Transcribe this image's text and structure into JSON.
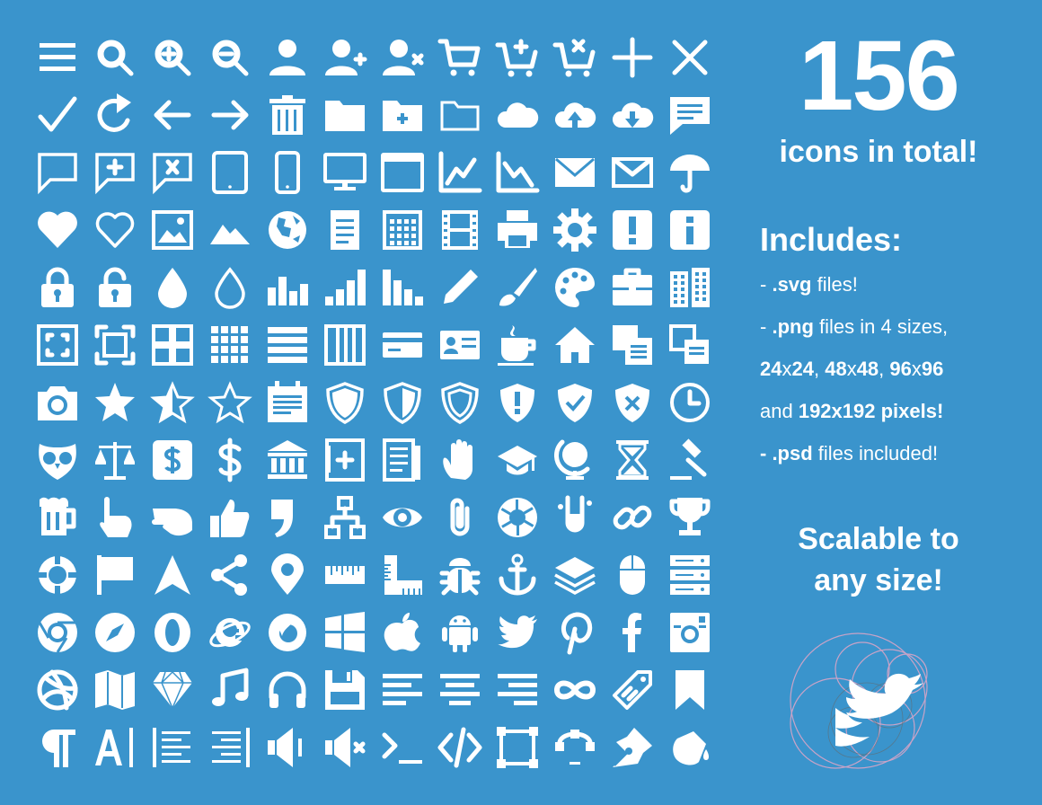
{
  "headline": {
    "count": "156",
    "subtitle": "icons in total!"
  },
  "includes": {
    "title": "Includes:",
    "lines": [
      {
        "prefix": "- ",
        "bold": ".svg",
        "rest": " files!"
      },
      {
        "prefix": "- ",
        "bold": ".png",
        "rest": " files in 4 sizes,"
      },
      {
        "bold1": "24",
        "t1": "x",
        "bold2": "24",
        "t2": ", ",
        "bold3": "48",
        "t3": "x",
        "bold4": "48",
        "t4": ", ",
        "bold5": "96",
        "t5": "x",
        "bold6": "96"
      },
      {
        "t1": "and ",
        "bold1": "192x192 pixels!"
      },
      {
        "bold1": "- .psd",
        "rest": " files included!"
      }
    ]
  },
  "tagline": {
    "line1": "Scalable to",
    "line2": "any size!"
  },
  "colors": {
    "background": "#3a94cc",
    "icon": "#ffffff",
    "bird_guides": "#c9a3c7"
  },
  "icons": [
    [
      "menu-icon",
      "search-icon",
      "zoom-in-icon",
      "zoom-out-icon",
      "user-icon",
      "user-add-icon",
      "user-remove-icon",
      "cart-icon",
      "cart-add-icon",
      "cart-remove-icon",
      "plus-icon",
      "close-icon"
    ],
    [
      "check-icon",
      "redo-icon",
      "arrow-left-icon",
      "arrow-right-icon",
      "trash-icon",
      "folder-icon",
      "folder-add-icon",
      "folder-outline-icon",
      "cloud-icon",
      "cloud-upload-icon",
      "cloud-download-icon",
      "chat-icon"
    ],
    [
      "chat-outline-icon",
      "chat-add-icon",
      "chat-remove-icon",
      "tablet-icon",
      "phone-icon",
      "monitor-icon",
      "browser-window-icon",
      "line-chart-up-icon",
      "line-chart-down-icon",
      "mail-icon",
      "mail-outline-icon",
      "umbrella-icon"
    ],
    [
      "heart-icon",
      "heart-outline-icon",
      "image-icon",
      "mountains-icon",
      "globe-icon",
      "document-icon",
      "calendar-grid-icon",
      "film-icon",
      "printer-icon",
      "gear-icon",
      "alert-icon",
      "info-icon"
    ],
    [
      "lock-icon",
      "unlock-icon",
      "drop-icon",
      "drop-outline-icon",
      "bar-chart-icon",
      "bar-chart-rising-icon",
      "bar-chart-falling-icon",
      "pencil-icon",
      "brush-icon",
      "palette-icon",
      "briefcase-icon",
      "buildings-icon"
    ],
    [
      "fullscreen-icon",
      "fullscreen-exit-icon",
      "grid-large-icon",
      "grid-small-icon",
      "list-icon",
      "columns-icon",
      "credit-card-icon",
      "id-card-icon",
      "coffee-icon",
      "home-icon",
      "copy-icon",
      "copy-outline-icon"
    ],
    [
      "camera-icon",
      "star-icon",
      "star-half-icon",
      "star-outline-icon",
      "calendar-icon",
      "shield-icon",
      "shield-half-icon",
      "shield-outline-icon",
      "shield-alert-icon",
      "shield-check-icon",
      "shield-remove-icon",
      "clock-icon"
    ],
    [
      "owl-icon",
      "scales-icon",
      "dollar-box-icon",
      "dollar-icon",
      "bank-icon",
      "book-add-icon",
      "newspaper-icon",
      "hand-icon",
      "graduation-cap-icon",
      "globe-stand-icon",
      "hourglass-icon",
      "gavel-icon"
    ],
    [
      "beer-icon",
      "hand-point-icon",
      "hand-point-left-icon",
      "thumbs-up-icon",
      "quote-icon",
      "sitemap-icon",
      "eye-icon",
      "paperclip-icon",
      "aperture-icon",
      "flask-icon",
      "link-icon",
      "trophy-icon"
    ],
    [
      "lifebuoy-icon",
      "flag-icon",
      "navigation-icon",
      "share-icon",
      "map-pin-icon",
      "ruler-icon",
      "set-square-icon",
      "bug-icon",
      "anchor-icon",
      "layers-icon",
      "mouse-icon",
      "server-icon"
    ],
    [
      "chrome-icon",
      "compass-icon",
      "opera-icon",
      "ie-icon",
      "firefox-icon",
      "windows-icon",
      "apple-icon",
      "android-icon",
      "twitter-icon",
      "pinterest-icon",
      "facebook-icon",
      "instagram-icon"
    ],
    [
      "dribbble-icon",
      "map-icon",
      "diamond-icon",
      "music-note-icon",
      "headphones-icon",
      "save-icon",
      "align-left-icon",
      "align-center-icon",
      "align-right-icon",
      "infinity-icon",
      "tag-icon",
      "bookmark-icon"
    ],
    [
      "paragraph-icon",
      "text-cursor-icon",
      "indent-left-icon",
      "indent-right-icon",
      "volume-icon",
      "mute-icon",
      "terminal-icon",
      "code-icon",
      "vector-square-icon",
      "bezier-icon",
      "pen-nib-icon",
      "paint-bucket-icon"
    ]
  ]
}
